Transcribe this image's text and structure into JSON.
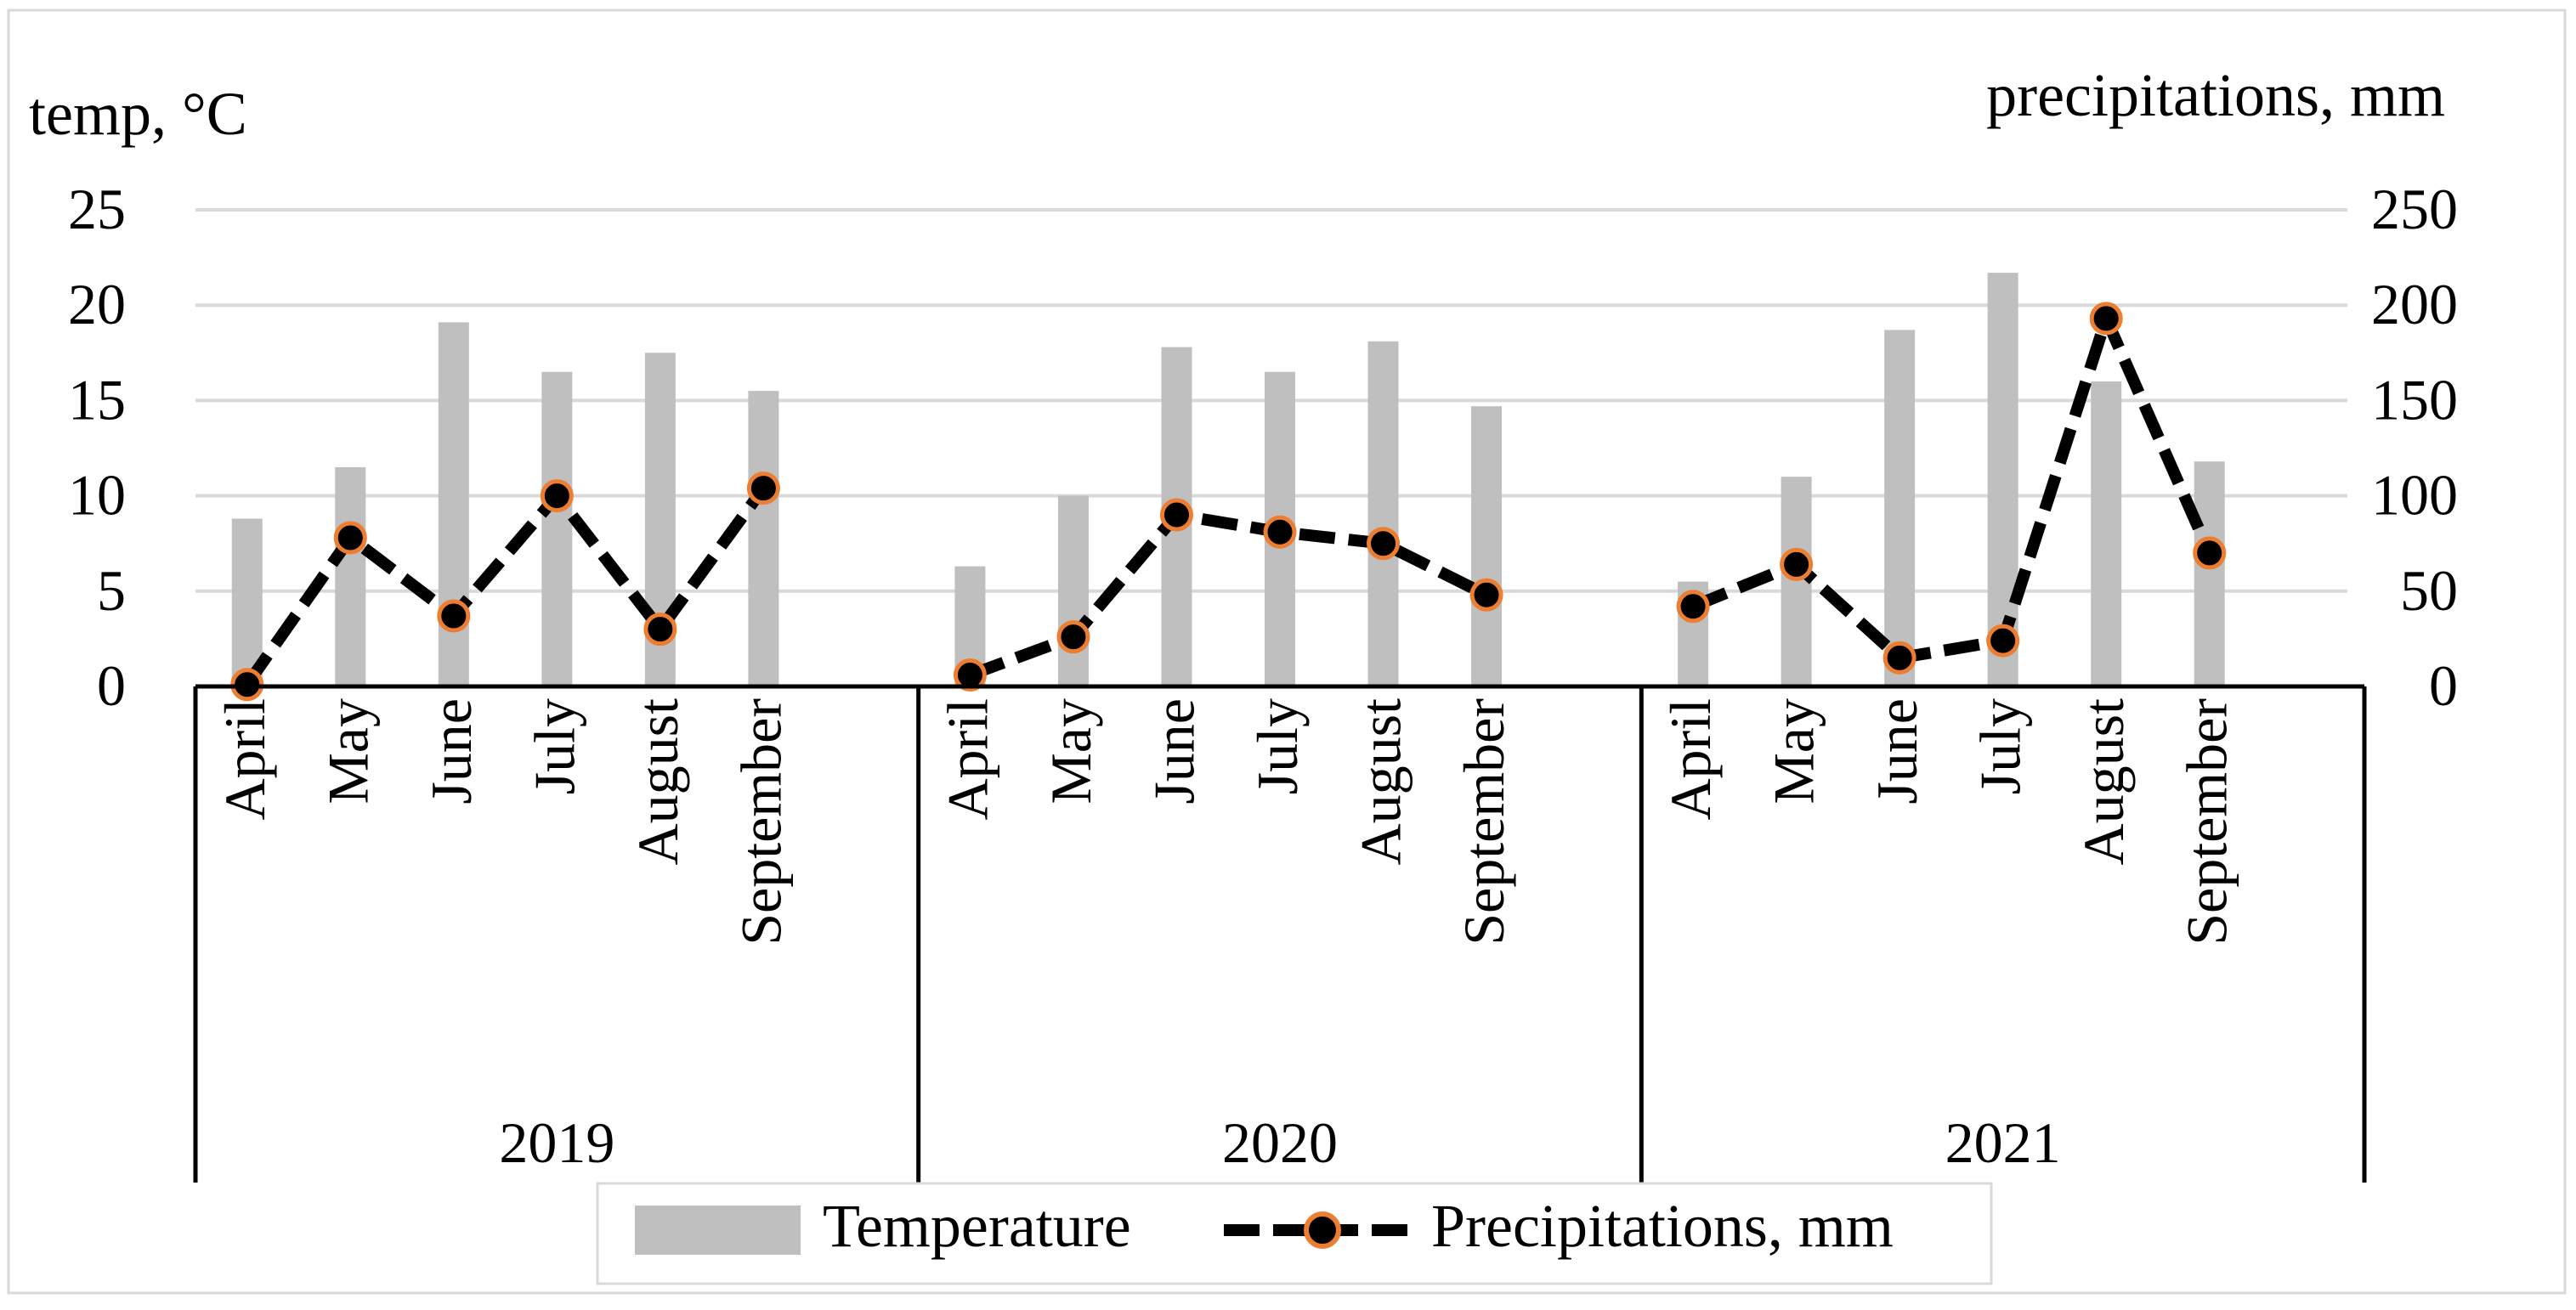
{
  "chart_data": {
    "type": "bar+line",
    "left_axis_label": "temp, °C",
    "right_axis_label": "precipitations, mm",
    "left_ticks": [
      0,
      5,
      10,
      15,
      20,
      25
    ],
    "right_ticks": [
      0,
      50,
      100,
      150,
      200,
      250
    ],
    "ylim_left": [
      0,
      25
    ],
    "ylim_right": [
      0,
      250
    ],
    "grid": true,
    "groups": [
      {
        "year": "2019",
        "months": [
          "April",
          "May",
          "June",
          "July",
          "August",
          "September"
        ]
      },
      {
        "year": "2020",
        "months": [
          "April",
          "May",
          "June",
          "July",
          "August",
          "September"
        ]
      },
      {
        "year": "2021",
        "months": [
          "April",
          "May",
          "June",
          "July",
          "August",
          "September"
        ]
      }
    ],
    "series": [
      {
        "name": "Temperature",
        "type": "bar",
        "axis": "left",
        "color": "#bfbfbf",
        "values": [
          8.8,
          11.5,
          19.1,
          16.5,
          17.5,
          15.5,
          6.3,
          10.0,
          17.8,
          16.5,
          18.1,
          14.7,
          5.5,
          11.0,
          18.7,
          21.7,
          16.0,
          11.8
        ]
      },
      {
        "name": "Precipitations, mm",
        "type": "line",
        "axis": "right",
        "line_color": "#000000",
        "marker_color": "#000000",
        "marker_edge_color": "#ed7d31",
        "values": [
          1,
          78,
          37,
          100,
          30,
          104,
          6,
          26,
          90,
          81,
          75,
          48,
          42,
          64,
          15,
          24,
          193,
          70
        ]
      }
    ],
    "legend": {
      "placement": "bottom-center",
      "items": [
        "Temperature",
        "Precipitations, mm"
      ]
    }
  }
}
